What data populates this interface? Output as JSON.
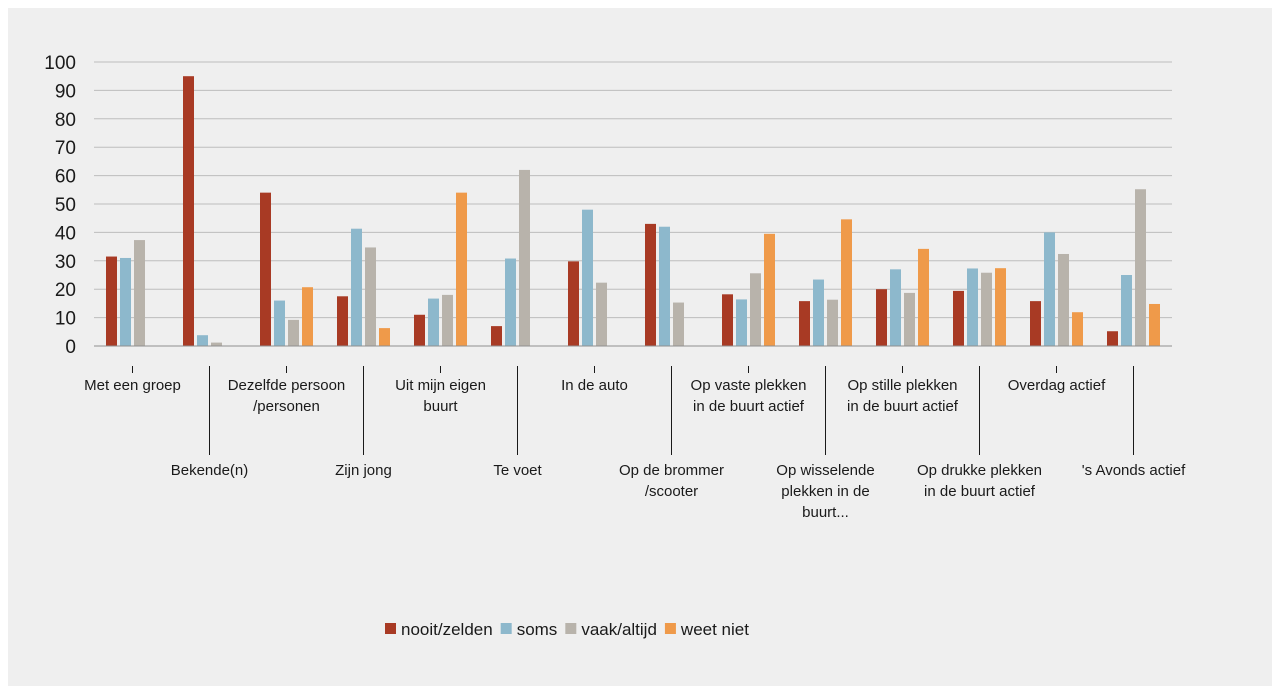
{
  "chart_data": {
    "type": "bar",
    "title": "",
    "xlabel": "",
    "ylabel": "",
    "ylim": [
      0,
      100
    ],
    "yticks": [
      0,
      10,
      20,
      30,
      40,
      50,
      60,
      70,
      80,
      90,
      100
    ],
    "grid": true,
    "legend_position": "bottom",
    "categories": [
      [
        "Met een groep"
      ],
      [
        "Bekende(n)"
      ],
      [
        "Dezelfde persoon",
        "/personen"
      ],
      [
        "Zijn jong"
      ],
      [
        "Uit mijn eigen",
        "buurt"
      ],
      [
        "Te voet"
      ],
      [
        "In de auto"
      ],
      [
        "Op de brommer",
        "/scooter"
      ],
      [
        "Op vaste plekken",
        "in de buurt actief"
      ],
      [
        "Op wisselende",
        "plekken in de",
        "buurt..."
      ],
      [
        "Op stille plekken",
        "in de buurt actief"
      ],
      [
        "Op drukke plekken",
        "in de buurt actief"
      ],
      [
        "Overdag actief"
      ],
      [
        "'s Avonds actief"
      ]
    ],
    "series": [
      {
        "name": "nooit/zelden",
        "color": "#a83a24",
        "values": [
          31.5,
          95,
          54,
          17.5,
          11,
          7,
          29.8,
          43,
          18.2,
          15.8,
          20,
          19.4,
          15.8,
          5.2
        ]
      },
      {
        "name": "soms",
        "color": "#8db8cc",
        "values": [
          31,
          3.8,
          16,
          41.3,
          16.7,
          30.8,
          48,
          42,
          16.4,
          23.4,
          27,
          27.3,
          40,
          25
        ]
      },
      {
        "name": "vaak/altijd",
        "color": "#b8b3ab",
        "values": [
          37.3,
          1.2,
          9.2,
          34.7,
          18,
          62,
          22.3,
          15.3,
          25.6,
          16.3,
          18.7,
          25.8,
          32.4,
          55.2
        ]
      },
      {
        "name": "weet niet",
        "color": "#ef9a4a",
        "values": [
          0,
          0,
          20.7,
          6.3,
          54,
          0,
          0,
          0,
          39.5,
          44.6,
          34.2,
          27.4,
          11.9,
          14.8
        ]
      }
    ]
  },
  "colors": {
    "panel_background": "#efefef",
    "gridline": "#bdbdbd",
    "axis": "#8f8f8f"
  }
}
